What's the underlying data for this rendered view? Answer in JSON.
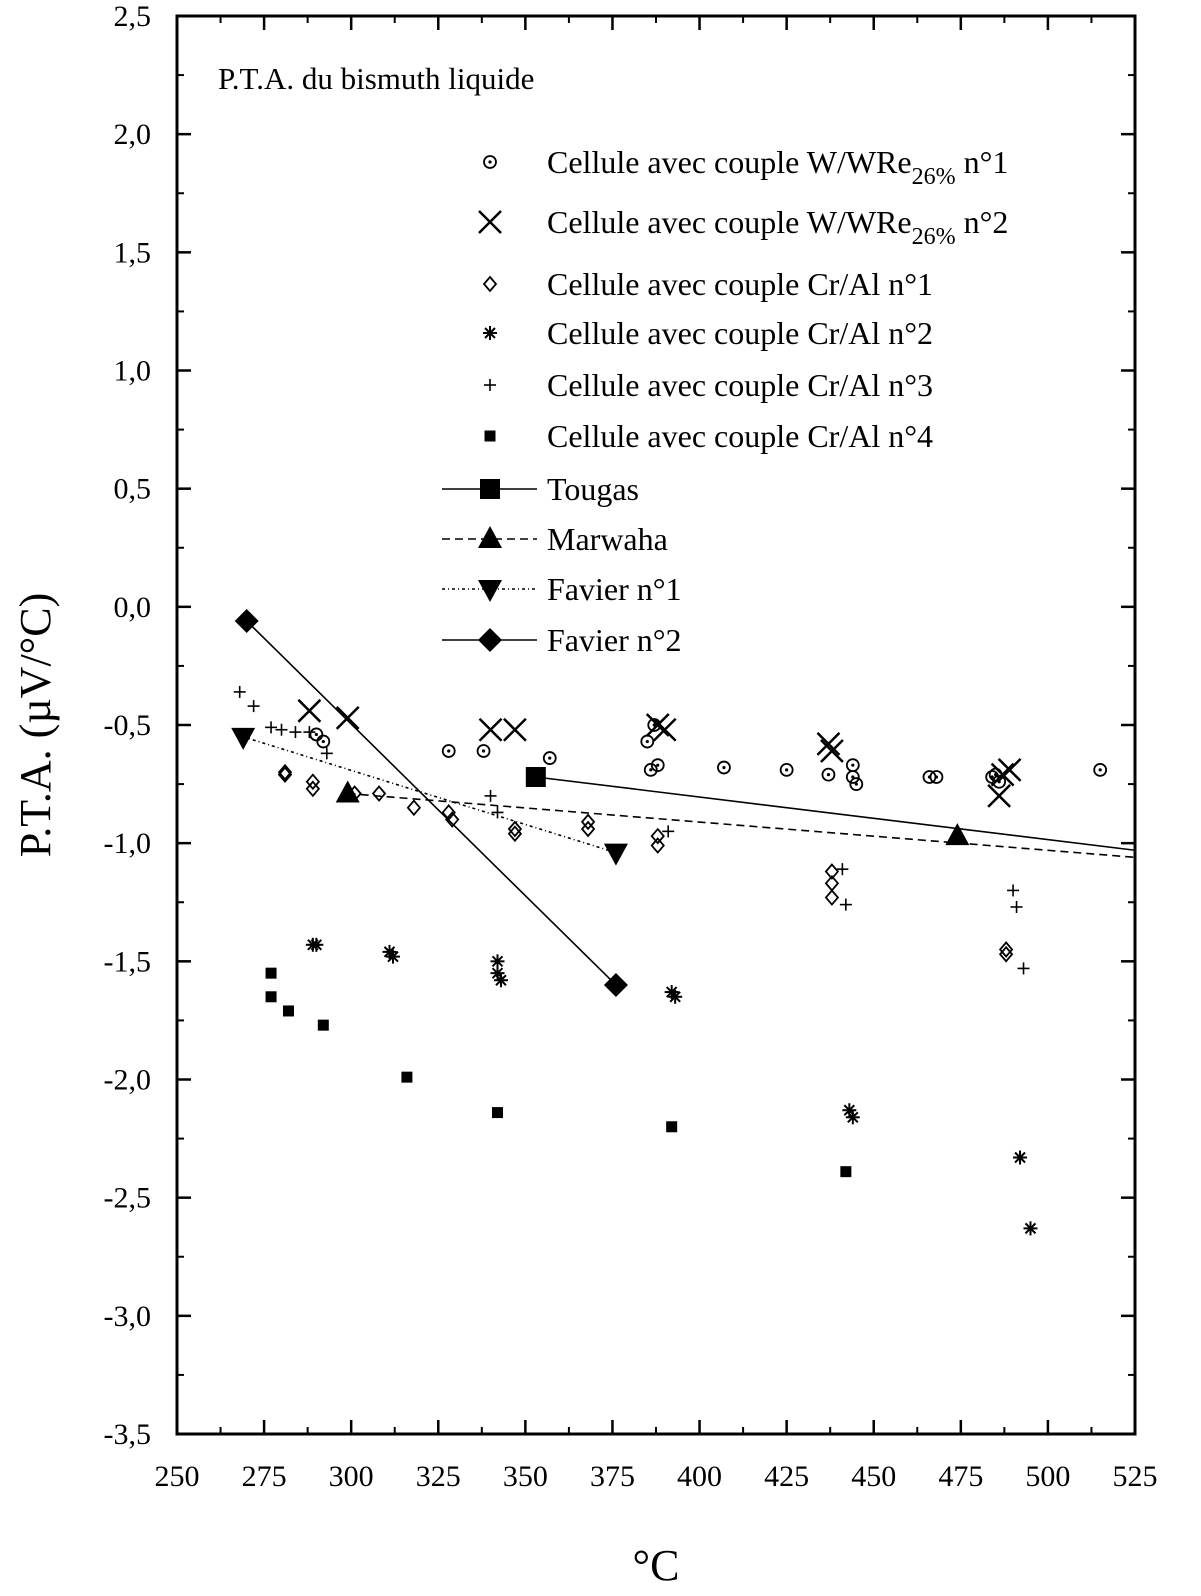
{
  "chart_data": {
    "type": "scatter",
    "title": "P.T.A. du bismuth liquide",
    "xlabel": "°C",
    "ylabel": "P.T.A. (µV/°C)",
    "xlim": [
      250,
      525
    ],
    "ylim": [
      -3.5,
      2.5
    ],
    "x_ticks": [
      250,
      275,
      300,
      325,
      350,
      375,
      400,
      425,
      450,
      475,
      500,
      525
    ],
    "y_ticks": [
      2.5,
      2.0,
      1.5,
      1.0,
      0.5,
      0.0,
      -0.5,
      -1.0,
      -1.5,
      -2.0,
      -2.5,
      -3.0,
      -3.5
    ],
    "x_tick_labels": [
      "250",
      "275",
      "300",
      "325",
      "350",
      "375",
      "400",
      "425",
      "450",
      "475",
      "500",
      "525"
    ],
    "y_tick_labels": [
      "2,5",
      "2,0",
      "1,5",
      "1,0",
      "0,5",
      "0,0",
      "-0,5",
      "-1,0",
      "-1,5",
      "-2,0",
      "-2,5",
      "-3,0",
      "-3,5"
    ],
    "grid": false,
    "legend_position": "top-right",
    "series": [
      {
        "name_prefix": "Cellule avec couple W/WRe",
        "name_sub": "26%",
        "name_suffix": " n°1",
        "marker": "circle-dot",
        "points": [
          [
            290,
            -0.54
          ],
          [
            292,
            -0.57
          ],
          [
            328,
            -0.61
          ],
          [
            338,
            -0.61
          ],
          [
            357,
            -0.64
          ],
          [
            385,
            -0.57
          ],
          [
            386,
            -0.69
          ],
          [
            387,
            -0.5
          ],
          [
            388,
            -0.67
          ],
          [
            407,
            -0.68
          ],
          [
            425,
            -0.69
          ],
          [
            437,
            -0.71
          ],
          [
            444,
            -0.67
          ],
          [
            444,
            -0.72
          ],
          [
            445,
            -0.75
          ],
          [
            466,
            -0.72
          ],
          [
            468,
            -0.72
          ],
          [
            484,
            -0.72
          ],
          [
            485,
            -0.71
          ],
          [
            486,
            -0.74
          ],
          [
            515,
            -0.69
          ]
        ]
      },
      {
        "name_prefix": "Cellule avec couple W/WRe",
        "name_sub": "26%",
        "name_suffix": " n°2",
        "marker": "x",
        "points": [
          [
            288,
            -0.44
          ],
          [
            299,
            -0.47
          ],
          [
            340,
            -0.52
          ],
          [
            347,
            -0.52
          ],
          [
            388,
            -0.5
          ],
          [
            390,
            -0.52
          ],
          [
            437,
            -0.58
          ],
          [
            438,
            -0.61
          ],
          [
            486,
            -0.8
          ],
          [
            487,
            -0.71
          ],
          [
            489,
            -0.69
          ]
        ]
      },
      {
        "name": "Cellule avec couple Cr/Al n°1",
        "marker": "diamond-open",
        "points": [
          [
            281,
            -0.7
          ],
          [
            281,
            -0.71
          ],
          [
            289,
            -0.74
          ],
          [
            289,
            -0.77
          ],
          [
            301,
            -0.79
          ],
          [
            308,
            -0.79
          ],
          [
            318,
            -0.85
          ],
          [
            328,
            -0.87
          ],
          [
            329,
            -0.9
          ],
          [
            347,
            -0.94
          ],
          [
            347,
            -0.96
          ],
          [
            368,
            -0.91
          ],
          [
            368,
            -0.94
          ],
          [
            388,
            -0.97
          ],
          [
            388,
            -1.01
          ],
          [
            438,
            -1.12
          ],
          [
            438,
            -1.17
          ],
          [
            438,
            -1.23
          ],
          [
            488,
            -1.45
          ],
          [
            488,
            -1.47
          ]
        ]
      },
      {
        "name": "Cellule avec couple Cr/Al n°2",
        "marker": "asterisk",
        "points": [
          [
            289,
            -1.43
          ],
          [
            290,
            -1.43
          ],
          [
            311,
            -1.46
          ],
          [
            312,
            -1.48
          ],
          [
            342,
            -1.5
          ],
          [
            342,
            -1.55
          ],
          [
            343,
            -1.58
          ],
          [
            392,
            -1.63
          ],
          [
            393,
            -1.65
          ],
          [
            443,
            -2.13
          ],
          [
            444,
            -2.16
          ],
          [
            492,
            -2.33
          ],
          [
            495,
            -2.63
          ]
        ]
      },
      {
        "name": "Cellule avec couple Cr/Al n°3",
        "marker": "plus",
        "points": [
          [
            268,
            -0.36
          ],
          [
            272,
            -0.42
          ],
          [
            277,
            -0.51
          ],
          [
            280,
            -0.52
          ],
          [
            284,
            -0.53
          ],
          [
            288,
            -0.53
          ],
          [
            293,
            -0.62
          ],
          [
            340,
            -0.8
          ],
          [
            342,
            -0.87
          ],
          [
            391,
            -0.95
          ],
          [
            441,
            -1.11
          ],
          [
            442,
            -1.26
          ],
          [
            490,
            -1.2
          ],
          [
            491,
            -1.27
          ],
          [
            493,
            -1.53
          ]
        ]
      },
      {
        "name": "Cellule avec couple Cr/Al n°4",
        "marker": "square-small",
        "points": [
          [
            277,
            -1.55
          ],
          [
            277,
            -1.65
          ],
          [
            282,
            -1.71
          ],
          [
            292,
            -1.77
          ],
          [
            316,
            -1.99
          ],
          [
            342,
            -2.14
          ],
          [
            392,
            -2.2
          ],
          [
            442,
            -2.39
          ]
        ]
      },
      {
        "name": "Tougas",
        "marker": "square-large",
        "line": "solid",
        "points": [
          [
            353,
            -0.72
          ]
        ],
        "fit": [
          [
            353,
            -0.72
          ],
          [
            525,
            -1.03
          ]
        ]
      },
      {
        "name": "Marwaha",
        "marker": "triangle-up",
        "line": "dashed",
        "points": [
          [
            299,
            -0.79
          ],
          [
            474,
            -0.97
          ]
        ],
        "fit": [
          [
            299,
            -0.79
          ],
          [
            525,
            -1.06
          ]
        ]
      },
      {
        "name": "Favier n°1",
        "marker": "triangle-down",
        "line": "dashdot",
        "points": [
          [
            269,
            -0.55
          ],
          [
            376,
            -1.04
          ]
        ],
        "fit": [
          [
            269,
            -0.55
          ],
          [
            376,
            -1.04
          ]
        ]
      },
      {
        "name": "Favier n°2",
        "marker": "diamond-filled",
        "line": "solid",
        "points": [
          [
            270,
            -0.06
          ],
          [
            376,
            -1.6
          ]
        ],
        "fit": [
          [
            270,
            -0.06
          ],
          [
            376,
            -1.6
          ]
        ]
      }
    ]
  }
}
